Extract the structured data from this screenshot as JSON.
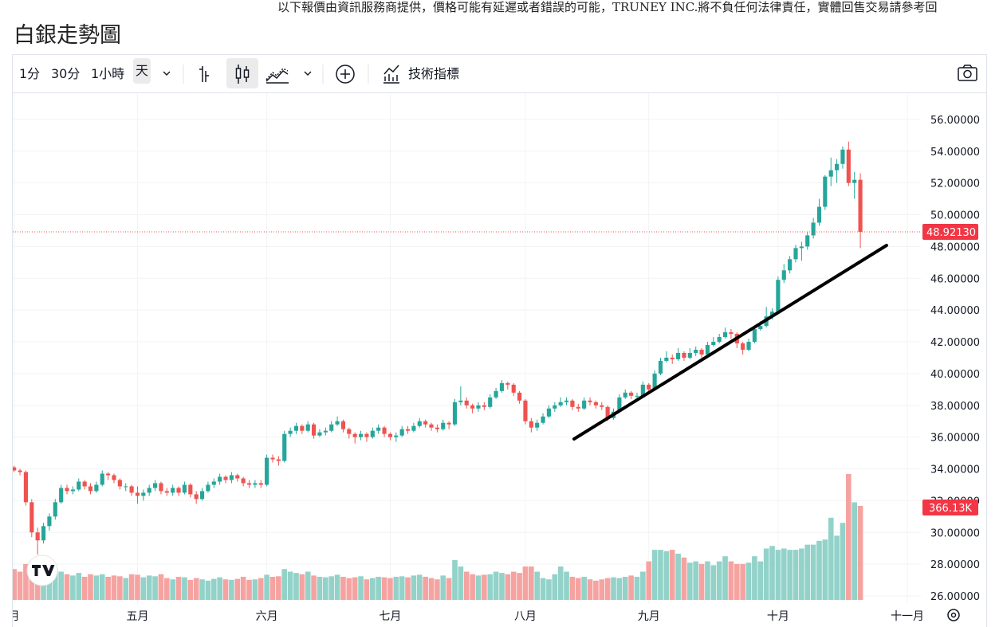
{
  "notice": "以下報價由資訊服務商提供，價格可能有延遲或者錯誤的可能，TRUNEY INC.將不負任何法律責任，實體回售交易請參考回",
  "toolbar": {
    "intervals": [
      "1分",
      "30分",
      "1小時",
      "天"
    ],
    "indicators": "技術指標"
  },
  "chart_data": {
    "type": "candlestick",
    "title": "白銀走勢圖",
    "up_color": "#26a69a",
    "down_color": "#ef5350",
    "volume_up_color": "#92d2c9",
    "volume_down_color": "#f5a3a1",
    "grid": true,
    "xlim": [
      -0.5,
      154.3
    ],
    "xticks": [
      {
        "value": 0,
        "label": "月"
      },
      {
        "value": 21,
        "label": "五月"
      },
      {
        "value": 43,
        "label": "六月"
      },
      {
        "value": 64,
        "label": "七月"
      },
      {
        "value": 87,
        "label": "八月"
      },
      {
        "value": 108,
        "label": "九月"
      },
      {
        "value": 130,
        "label": "十月"
      },
      {
        "value": 152,
        "label": "十一月"
      }
    ],
    "ylim": [
      25.5,
      57.7
    ],
    "yticks": [
      {
        "value": 26,
        "label": "26.00000"
      },
      {
        "value": 28,
        "label": "28.00000"
      },
      {
        "value": 30,
        "label": "30.00000"
      },
      {
        "value": 32,
        "label": "32.00000"
      },
      {
        "value": 34,
        "label": "34.00000"
      },
      {
        "value": 36,
        "label": "36.00000"
      },
      {
        "value": 38,
        "label": "38.00000"
      },
      {
        "value": 40,
        "label": "40.00000"
      },
      {
        "value": 42,
        "label": "42.00000"
      },
      {
        "value": 44,
        "label": "44.00000"
      },
      {
        "value": 46,
        "label": "46.00000"
      },
      {
        "value": 48,
        "label": "48.00000"
      },
      {
        "value": 50,
        "label": "50.00000"
      },
      {
        "value": 52,
        "label": "52.00000"
      },
      {
        "value": 54,
        "label": "54.00000"
      },
      {
        "value": 56,
        "label": "56.00000"
      }
    ],
    "open": [
      34.1,
      33.9,
      33.8,
      31.9,
      30.0,
      29.5,
      30.4,
      31.0,
      31.9,
      32.8,
      32.6,
      32.7,
      33.2,
      32.9,
      32.6,
      33.0,
      33.7,
      33.6,
      33.3,
      32.9,
      32.9,
      32.5,
      32.3,
      32.5,
      32.8,
      33.1,
      32.6,
      32.5,
      32.8,
      32.5,
      33.0,
      32.4,
      32.1,
      32.6,
      33.0,
      33.2,
      33.5,
      33.3,
      33.6,
      33.4,
      33.1,
      33.0,
      33.1,
      33.0,
      34.7,
      34.6,
      34.5,
      36.2,
      36.4,
      36.7,
      36.4,
      36.8,
      36.1,
      36.3,
      36.4,
      36.8,
      37.0,
      36.5,
      36.2,
      36.0,
      36.2,
      36.0,
      36.4,
      36.6,
      36.2,
      36.0,
      36.1,
      36.5,
      36.4,
      36.7,
      37.0,
      36.8,
      36.6,
      36.5,
      36.9,
      36.8,
      38.2,
      38.3,
      38.0,
      37.8,
      38.0,
      37.9,
      38.5,
      38.9,
      39.4,
      39.3,
      38.8,
      38.3,
      37.0,
      36.6,
      36.9,
      37.3,
      37.8,
      38.0,
      38.2,
      38.3,
      37.9,
      37.8,
      38.3,
      38.2,
      38.0,
      37.9,
      37.2,
      37.6,
      38.5,
      38.8,
      38.6,
      38.6,
      39.3,
      39.0,
      40.0,
      40.8,
      41.0,
      40.9,
      41.3,
      41.0,
      41.3,
      41.5,
      41.2,
      41.8,
      42.0,
      42.3,
      42.6,
      42.5,
      41.9,
      41.5,
      42.0,
      42.8,
      43.0,
      43.6,
      43.9,
      45.9,
      46.5,
      47.2,
      47.9,
      48.0,
      48.7,
      49.5,
      50.5,
      52.4,
      52.8,
      53.2,
      54.1,
      52.0,
      52.2
    ],
    "high": [
      34.2,
      34.0,
      33.9,
      32.1,
      30.3,
      30.6,
      31.2,
      32.1,
      33.0,
      33.0,
      32.9,
      33.4,
      33.3,
      33.1,
      33.2,
      33.9,
      33.8,
      33.7,
      33.4,
      33.1,
      33.0,
      32.9,
      32.7,
      33.0,
      33.3,
      33.2,
      32.8,
      33.0,
      32.9,
      33.2,
      33.1,
      32.6,
      32.8,
      33.2,
      33.4,
      33.7,
      33.6,
      33.8,
      33.7,
      33.5,
      33.3,
      33.3,
      33.3,
      34.9,
      34.9,
      34.8,
      36.4,
      36.6,
      36.9,
      36.8,
      37.0,
      36.9,
      36.5,
      36.6,
      37.0,
      37.3,
      37.1,
      36.6,
      36.3,
      36.4,
      36.3,
      36.6,
      36.8,
      36.7,
      36.3,
      36.3,
      36.7,
      36.7,
      36.9,
      37.2,
      37.1,
      36.9,
      36.8,
      37.1,
      37.0,
      38.4,
      39.2,
      38.5,
      38.1,
      38.2,
      38.2,
      38.7,
      39.1,
      39.6,
      39.5,
      39.4,
      38.9,
      38.4,
      37.2,
      37.1,
      37.5,
      38.0,
      38.2,
      38.5,
      38.5,
      38.4,
      38.1,
      38.5,
      38.5,
      38.3,
      38.2,
      38.0,
      37.8,
      38.7,
      39.0,
      38.9,
      38.8,
      39.5,
      39.4,
      40.2,
      41.0,
      41.4,
      41.2,
      41.6,
      41.4,
      41.6,
      41.7,
      41.6,
      42.0,
      42.3,
      42.5,
      42.9,
      42.8,
      42.6,
      42.0,
      42.2,
      43.0,
      43.3,
      44.2,
      44.1,
      46.1,
      46.9,
      47.4,
      48.1,
      48.3,
      48.9,
      49.8,
      51.0,
      52.5,
      53.6,
      53.5,
      54.3,
      54.6,
      52.7,
      52.6
    ],
    "low": [
      33.8,
      33.6,
      31.7,
      29.7,
      28.6,
      29.3,
      30.1,
      30.8,
      31.8,
      32.4,
      32.4,
      32.6,
      32.7,
      32.4,
      32.5,
      32.9,
      33.3,
      33.1,
      32.7,
      32.6,
      32.3,
      31.8,
      32.0,
      32.3,
      32.6,
      32.4,
      32.3,
      32.3,
      32.3,
      32.4,
      32.2,
      31.8,
      32.0,
      32.5,
      32.8,
      33.0,
      33.1,
      33.1,
      33.2,
      32.9,
      32.8,
      32.8,
      32.8,
      32.9,
      34.4,
      34.2,
      34.4,
      36.0,
      36.2,
      36.2,
      36.3,
      35.9,
      36.0,
      36.1,
      36.3,
      36.7,
      36.3,
      35.9,
      35.6,
      35.8,
      35.7,
      35.9,
      36.2,
      36.0,
      35.8,
      35.7,
      36.0,
      36.2,
      36.3,
      36.6,
      36.6,
      36.4,
      36.3,
      36.4,
      36.5,
      36.7,
      38.0,
      37.8,
      37.5,
      37.6,
      37.7,
      37.8,
      38.4,
      38.8,
      39.0,
      38.6,
      38.1,
      36.8,
      36.3,
      36.4,
      36.8,
      37.2,
      37.6,
      37.9,
      38.0,
      37.7,
      37.6,
      37.7,
      38.0,
      37.8,
      37.7,
      37.0,
      37.1,
      37.5,
      38.4,
      38.4,
      38.3,
      38.5,
      38.8,
      38.9,
      39.9,
      40.7,
      40.6,
      40.8,
      40.8,
      40.9,
      41.1,
      41.0,
      41.1,
      41.7,
      41.9,
      42.2,
      42.2,
      41.6,
      41.2,
      41.4,
      41.9,
      42.7,
      42.9,
      43.4,
      43.8,
      45.7,
      46.3,
      47.0,
      47.1,
      47.8,
      48.5,
      49.3,
      50.3,
      51.8,
      52.0,
      52.9,
      51.8,
      51.0,
      47.9
    ],
    "close": [
      33.9,
      33.8,
      31.9,
      30.0,
      29.5,
      30.4,
      31.0,
      31.9,
      32.8,
      32.6,
      32.7,
      33.2,
      32.9,
      32.6,
      33.0,
      33.7,
      33.6,
      33.3,
      32.9,
      32.9,
      32.5,
      32.3,
      32.5,
      32.8,
      33.1,
      32.6,
      32.5,
      32.8,
      32.5,
      33.0,
      32.4,
      32.1,
      32.6,
      33.0,
      33.2,
      33.5,
      33.3,
      33.6,
      33.4,
      33.1,
      33.0,
      33.1,
      33.0,
      34.7,
      34.6,
      34.5,
      36.2,
      36.4,
      36.7,
      36.4,
      36.8,
      36.1,
      36.3,
      36.4,
      36.8,
      37.0,
      36.5,
      36.2,
      36.0,
      36.2,
      36.0,
      36.4,
      36.6,
      36.2,
      36.0,
      36.1,
      36.5,
      36.4,
      36.7,
      37.0,
      36.8,
      36.6,
      36.5,
      36.9,
      36.8,
      38.2,
      38.3,
      38.0,
      37.8,
      38.0,
      37.9,
      38.5,
      38.9,
      39.4,
      39.3,
      38.8,
      38.3,
      37.0,
      36.6,
      36.9,
      37.3,
      37.8,
      38.0,
      38.2,
      38.3,
      37.9,
      37.8,
      38.3,
      38.2,
      38.0,
      37.9,
      37.2,
      37.6,
      38.5,
      38.8,
      38.6,
      38.6,
      39.3,
      39.0,
      40.0,
      40.8,
      41.0,
      40.9,
      41.3,
      41.0,
      41.3,
      41.5,
      41.2,
      41.8,
      42.0,
      42.3,
      42.6,
      42.5,
      41.9,
      41.5,
      42.0,
      42.8,
      43.0,
      43.6,
      43.9,
      45.9,
      46.5,
      47.2,
      47.9,
      48.0,
      48.7,
      49.5,
      50.5,
      52.4,
      52.8,
      53.2,
      54.1,
      52.0,
      52.2,
      48.9213
    ],
    "volume": [
      120000,
      110000,
      140000,
      150000,
      130000,
      120000,
      110000,
      125000,
      110000,
      100000,
      95000,
      105000,
      90000,
      100000,
      95000,
      100000,
      90000,
      95000,
      92000,
      85000,
      100000,
      98000,
      88000,
      95000,
      92000,
      100000,
      85000,
      80000,
      90000,
      88000,
      78000,
      85000,
      80000,
      75000,
      82000,
      88000,
      80000,
      78000,
      82000,
      90000,
      78000,
      80000,
      85000,
      98000,
      90000,
      92000,
      120000,
      110000,
      105000,
      100000,
      110000,
      95000,
      90000,
      88000,
      92000,
      98000,
      90000,
      85000,
      88000,
      92000,
      80000,
      85000,
      90000,
      88000,
      85000,
      90000,
      92000,
      88000,
      95000,
      98000,
      90000,
      85000,
      80000,
      95000,
      85000,
      155000,
      130000,
      110000,
      100000,
      95000,
      98000,
      100000,
      110000,
      105000,
      100000,
      110000,
      105000,
      130000,
      130000,
      110000,
      85000,
      80000,
      100000,
      130000,
      110000,
      90000,
      85000,
      90000,
      80000,
      75000,
      80000,
      85000,
      88000,
      85000,
      90000,
      95000,
      90000,
      110000,
      150000,
      195000,
      195000,
      190000,
      195000,
      180000,
      165000,
      145000,
      150000,
      140000,
      150000,
      135000,
      150000,
      170000,
      150000,
      140000,
      140000,
      145000,
      170000,
      150000,
      200000,
      210000,
      195000,
      200000,
      195000,
      195000,
      200000,
      215000,
      215000,
      230000,
      235000,
      320000,
      250000,
      300000,
      490000,
      380000,
      366130
    ],
    "last_price": {
      "value": 48.9213,
      "label": "48.92130"
    },
    "last_volume": {
      "value": 366130,
      "label": "366.13K"
    }
  }
}
